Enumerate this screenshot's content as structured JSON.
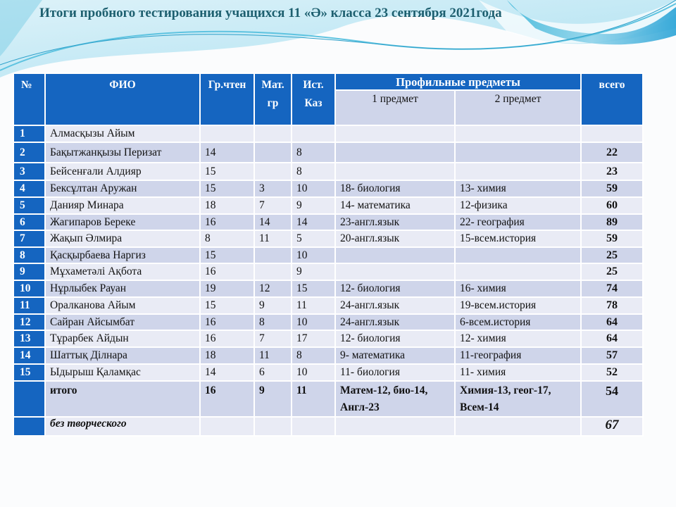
{
  "title": "Итоги пробного тестирования  учащихся 11 «Ә» класса 23 сентября 2021года",
  "colors": {
    "header": "#1565c0",
    "row_light": "#e9ebf5",
    "row_dark": "#cfd5ea",
    "title": "#1d5f6f"
  },
  "header": {
    "num": "№",
    "name": "ФИО",
    "reading": "Гр.чтен",
    "math": "Мат. гр",
    "history": "Ист. Каз",
    "profile": "Профильные предметы",
    "subject1": "1 предмет",
    "subject2": "2 предмет",
    "total": "всего"
  },
  "rows": [
    {
      "num": "1",
      "name": "Алмасқызы Айым",
      "reading": "",
      "math": "",
      "history": "",
      "s1": "",
      "s2": "",
      "total": ""
    },
    {
      "num": "2",
      "name": "Бақытжанқызы Перизат",
      "reading": "14",
      "math": "",
      "history": "8",
      "s1": "",
      "s2": "",
      "total": "22"
    },
    {
      "num": "3",
      "name": "Бейсенғали Алдияр",
      "reading": "15",
      "math": "",
      "history": "8",
      "s1": "",
      "s2": "",
      "total": "23"
    },
    {
      "num": "4",
      "name": "Бексұлтан Аружан",
      "reading": "15",
      "math": "3",
      "history": "10",
      "s1": "18- биология",
      "s2": "13- химия",
      "total": "59"
    },
    {
      "num": "5",
      "name": "Данияр Минара",
      "reading": "18",
      "math": "7",
      "history": "9",
      "s1": "14- математика",
      "s2": "12-физика",
      "total": "60"
    },
    {
      "num": "6",
      "name": "Жагипаров Береке",
      "reading": "16",
      "math": "14",
      "history": "14",
      "s1": "23-англ.язык",
      "s2": "22- география",
      "total": "89"
    },
    {
      "num": "7",
      "name": "Жақып Әлмира",
      "reading": "8",
      "math": "11",
      "history": "5",
      "s1": "20-англ.язык",
      "s2": "15-всем.история",
      "total": "59"
    },
    {
      "num": "8",
      "name": "Қасқырбаева Наргиз",
      "reading": "15",
      "math": "",
      "history": "10",
      "s1": "",
      "s2": "",
      "total": "25"
    },
    {
      "num": "9",
      "name": "Мұхаметәлі  Ақбота",
      "reading": "16",
      "math": "",
      "history": "9",
      "s1": "",
      "s2": "",
      "total": "25"
    },
    {
      "num": "10",
      "name": "Нұрлыбек Рауан",
      "reading": "19",
      "math": "12",
      "history": "15",
      "s1": "12- биология",
      "s2": "16- химия",
      "total": "74"
    },
    {
      "num": "11",
      "name": "Оралканова Айым",
      "reading": "15",
      "math": "9",
      "history": "11",
      "s1": "24-англ.язык",
      "s2": "19-всем.история",
      "total": "78"
    },
    {
      "num": "12",
      "name": "Сайран Айсымбат",
      "reading": "16",
      "math": "8",
      "history": "10",
      "s1": "24-англ.язык",
      "s2": "6-всем.история",
      "total": "64"
    },
    {
      "num": "13",
      "name": "Тұрарбек Айдын",
      "reading": "16",
      "math": "7",
      "history": "17",
      "s1": "12- биология",
      "s2": "12- химия",
      "total": "64"
    },
    {
      "num": "14",
      "name": "Шаттық Ділнара",
      "reading": "18",
      "math": "11",
      "history": "8",
      "s1": "9- математика",
      "s2": "11-география",
      "total": "57"
    },
    {
      "num": "15",
      "name": "Ыдырыш Қаламқас",
      "reading": "14",
      "math": "6",
      "history": "10",
      "s1": "11- биология",
      "s2": "11- химия",
      "total": "52"
    }
  ],
  "itogo": {
    "label": "итого",
    "reading": "16",
    "math": "9",
    "history": "11",
    "s1": "Матем-12, био-14, Англ-23",
    "s2": "Химия-13, геог-17, Всем-14",
    "total": "54"
  },
  "bez": {
    "label": "без творческого",
    "total": "67"
  }
}
